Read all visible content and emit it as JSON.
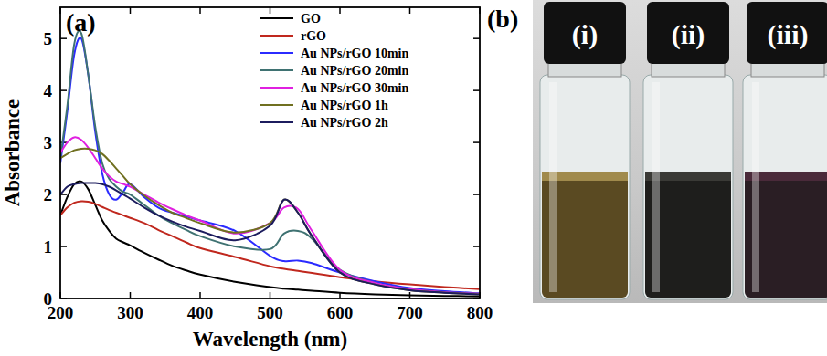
{
  "chart_data": {
    "type": "line",
    "title": "(a)",
    "x_label": "Wavelength (nm)",
    "y_label": "Absorbance",
    "x": [
      200,
      210,
      220,
      230,
      240,
      250,
      260,
      270,
      280,
      290,
      300,
      320,
      340,
      360,
      380,
      400,
      450,
      500,
      520,
      540,
      560,
      600,
      650,
      700,
      750,
      800
    ],
    "series": [
      {
        "name": "GO",
        "color": "#000000",
        "values": [
          1.6,
          1.95,
          2.2,
          2.25,
          2.1,
          1.8,
          1.5,
          1.3,
          1.15,
          1.08,
          1.02,
          0.88,
          0.75,
          0.63,
          0.54,
          0.46,
          0.32,
          0.22,
          0.19,
          0.17,
          0.15,
          0.11,
          0.08,
          0.06,
          0.05,
          0.04
        ]
      },
      {
        "name": "rGO",
        "color": "#c0281e",
        "values": [
          1.6,
          1.75,
          1.84,
          1.87,
          1.86,
          1.82,
          1.76,
          1.7,
          1.65,
          1.6,
          1.55,
          1.45,
          1.32,
          1.2,
          1.08,
          0.97,
          0.8,
          0.62,
          0.57,
          0.53,
          0.49,
          0.41,
          0.33,
          0.27,
          0.22,
          0.18
        ]
      },
      {
        "name": "Au NPs/rGO 10min",
        "color": "#2b2bff",
        "values": [
          2.6,
          3.6,
          4.7,
          5.0,
          4.3,
          3.2,
          2.4,
          2.0,
          1.9,
          2.05,
          2.2,
          1.95,
          1.75,
          1.65,
          1.58,
          1.5,
          1.3,
          0.82,
          0.72,
          0.73,
          0.68,
          0.5,
          0.33,
          0.2,
          0.14,
          0.1
        ]
      },
      {
        "name": "Au NPs/rGO 20min",
        "color": "#3f7272",
        "values": [
          2.7,
          3.7,
          4.9,
          5.1,
          4.3,
          3.3,
          2.6,
          2.3,
          2.15,
          2.05,
          2.0,
          1.8,
          1.6,
          1.45,
          1.32,
          1.2,
          1.0,
          0.95,
          1.25,
          1.3,
          1.15,
          0.55,
          0.3,
          0.18,
          0.12,
          0.09
        ]
      },
      {
        "name": "Au NPs/rGO 30min",
        "color": "#e020e0",
        "values": [
          2.8,
          3.0,
          3.1,
          3.05,
          2.9,
          2.7,
          2.5,
          2.35,
          2.25,
          2.2,
          2.15,
          2.0,
          1.85,
          1.72,
          1.6,
          1.5,
          1.25,
          1.45,
          1.75,
          1.72,
          1.3,
          0.55,
          0.3,
          0.18,
          0.12,
          0.09
        ]
      },
      {
        "name": "Au NPs/rGO 1h",
        "color": "#707020",
        "values": [
          2.7,
          2.78,
          2.85,
          2.88,
          2.88,
          2.85,
          2.78,
          2.65,
          2.5,
          2.35,
          2.2,
          1.98,
          1.8,
          1.65,
          1.55,
          1.45,
          1.27,
          1.45,
          1.9,
          1.65,
          1.2,
          0.5,
          0.27,
          0.16,
          0.11,
          0.08
        ]
      },
      {
        "name": "Au NPs/rGO 2h",
        "color": "#1c1c5e",
        "values": [
          2.0,
          2.15,
          2.2,
          2.22,
          2.22,
          2.22,
          2.2,
          2.15,
          2.08,
          2.0,
          1.92,
          1.75,
          1.6,
          1.48,
          1.38,
          1.3,
          1.12,
          1.4,
          1.9,
          1.65,
          1.2,
          0.5,
          0.27,
          0.16,
          0.11,
          0.08
        ]
      }
    ],
    "xlim": [
      200,
      800
    ],
    "xticks": [
      200,
      300,
      400,
      500,
      600,
      700,
      800
    ],
    "ylim": [
      0,
      5.6
    ],
    "yticks": [
      0,
      1,
      2,
      3,
      4,
      5
    ],
    "legend": "upper-right",
    "grid": false
  },
  "photo": {
    "label": "(b)",
    "vials": [
      "(i)",
      "(ii)",
      "(iii)"
    ]
  }
}
